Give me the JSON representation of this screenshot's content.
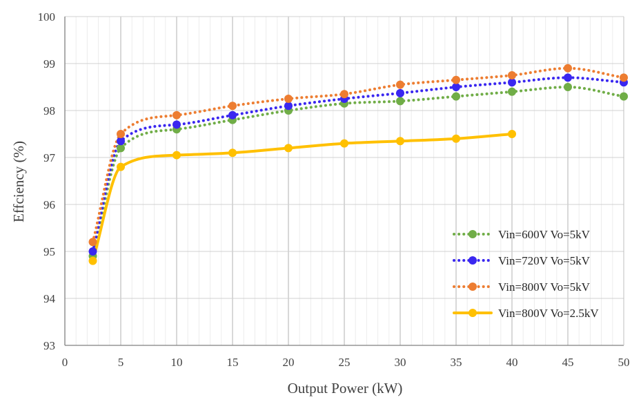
{
  "chart_data": {
    "type": "line",
    "xlabel": "Output Power (kW)",
    "ylabel": "Effciency (%)",
    "xlim": [
      0,
      50
    ],
    "ylim": [
      93,
      100
    ],
    "x_ticks": [
      "0",
      "5",
      "10",
      "15",
      "20",
      "25",
      "30",
      "35",
      "40",
      "45",
      "50"
    ],
    "y_ticks": [
      "93",
      "94",
      "95",
      "96",
      "97",
      "98",
      "99",
      "100"
    ],
    "grid": true,
    "legend_position": "bottom-right",
    "series": [
      {
        "name": "Vin=600V Vo=5kV",
        "color": "#70ad47",
        "style": "dotted",
        "x": [
          2.5,
          5,
          10,
          15,
          20,
          25,
          30,
          35,
          40,
          45,
          50
        ],
        "y": [
          94.9,
          97.2,
          97.6,
          97.8,
          98.0,
          98.15,
          98.2,
          98.3,
          98.4,
          98.5,
          98.3
        ]
      },
      {
        "name": "Vin=720V Vo=5kV",
        "color": "#3a27f0",
        "style": "dotted",
        "x": [
          2.5,
          5,
          10,
          15,
          20,
          25,
          30,
          35,
          40,
          45,
          50
        ],
        "y": [
          95.0,
          97.35,
          97.7,
          97.9,
          98.1,
          98.25,
          98.37,
          98.5,
          98.6,
          98.7,
          98.6
        ]
      },
      {
        "name": "Vin=800V Vo=5kV",
        "color": "#ed7d31",
        "style": "dotted",
        "x": [
          2.5,
          5,
          10,
          15,
          20,
          25,
          30,
          35,
          40,
          45,
          50
        ],
        "y": [
          95.2,
          97.5,
          97.9,
          98.1,
          98.25,
          98.35,
          98.55,
          98.65,
          98.75,
          98.9,
          98.7
        ]
      },
      {
        "name": "Vin=800V Vo=2.5kV",
        "color": "#ffc000",
        "style": "solid",
        "x": [
          2.5,
          5,
          10,
          15,
          20,
          25,
          30,
          35,
          40
        ],
        "y": [
          94.8,
          96.8,
          97.05,
          97.1,
          97.2,
          97.3,
          97.35,
          97.4,
          97.5
        ]
      }
    ]
  }
}
